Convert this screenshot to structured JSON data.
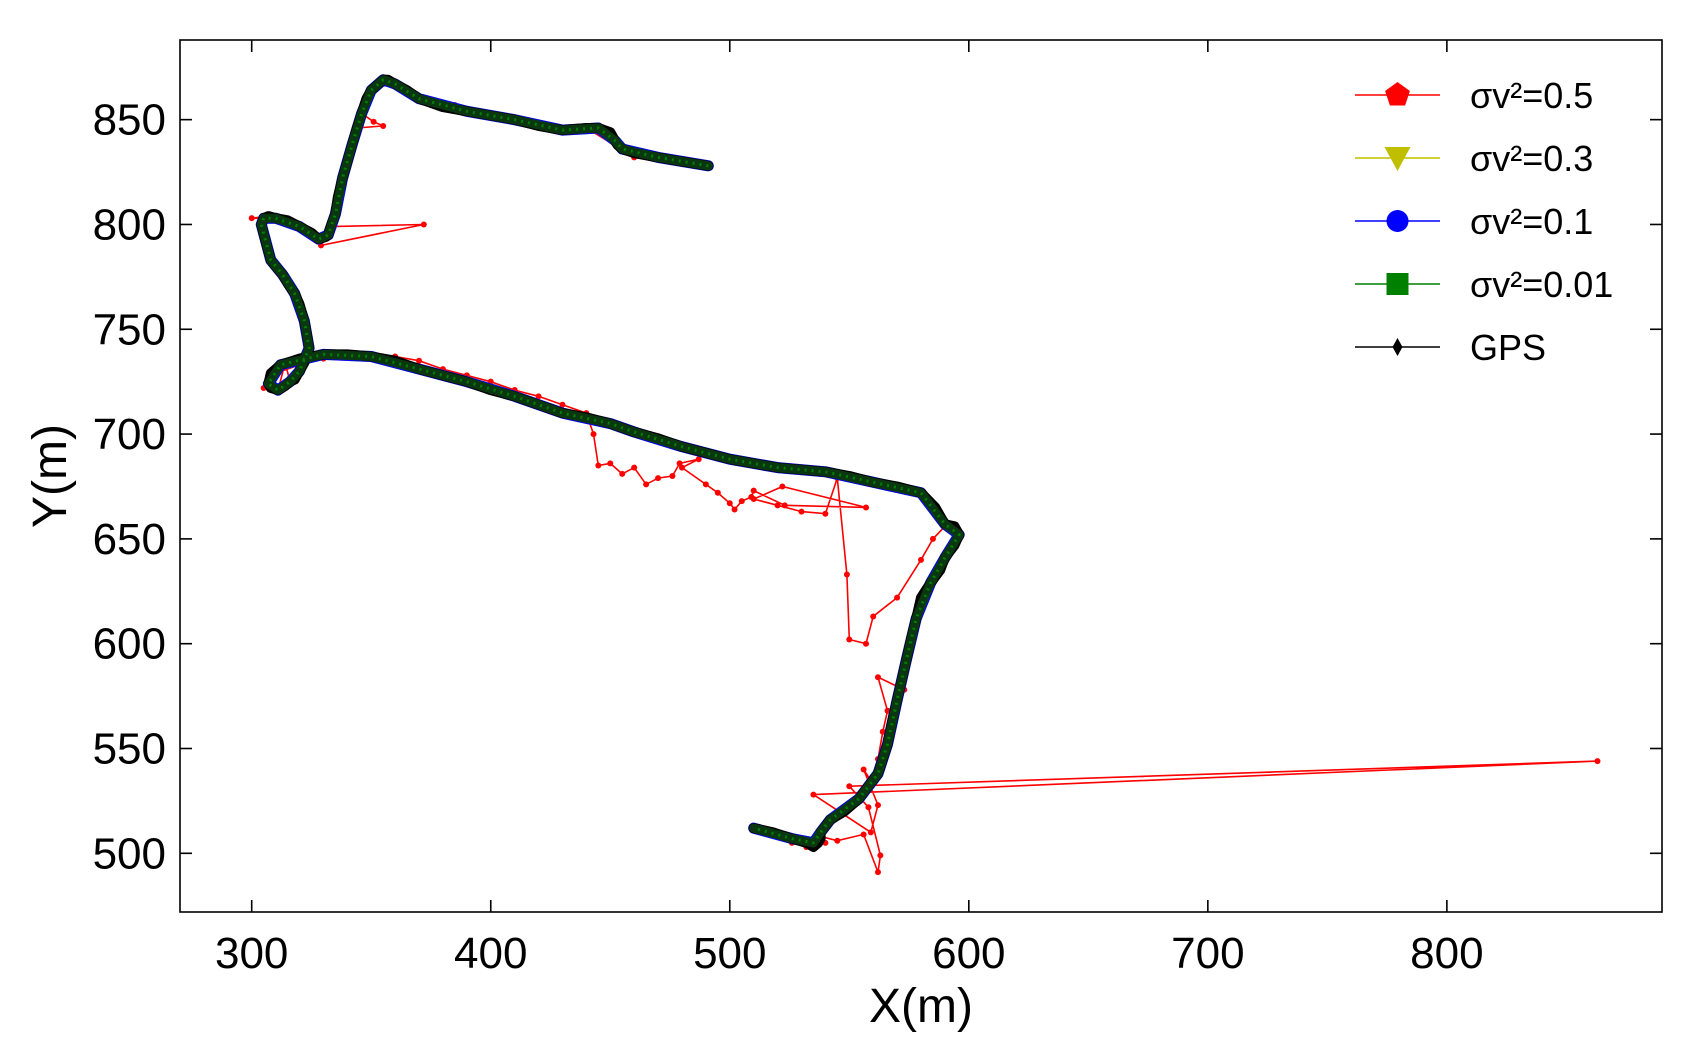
{
  "chart_data": {
    "type": "line",
    "xlabel": "X(m)",
    "ylabel": "Y(m)",
    "xlim": [
      270,
      890
    ],
    "ylim": [
      472,
      888
    ],
    "xticks": [
      300,
      400,
      500,
      600,
      700,
      800
    ],
    "yticks": [
      500,
      550,
      600,
      650,
      700,
      750,
      800,
      850
    ],
    "grid": false,
    "legend_position": "top-right",
    "legend": [
      {
        "label": "σv²=0.5",
        "color": "#ff0000",
        "marker": "pentagon"
      },
      {
        "label": "σv²=0.3",
        "color": "#bfbf00",
        "marker": "triangle-down"
      },
      {
        "label": "σv²=0.1",
        "color": "#0000ff",
        "marker": "circle"
      },
      {
        "label": "σv²=0.01",
        "color": "#008000",
        "marker": "square"
      },
      {
        "label": "GPS",
        "color": "#000000",
        "marker": "diamond"
      }
    ],
    "series": [
      {
        "name": "GPS",
        "color": "#000000",
        "x": [
          491,
          480,
          470,
          460,
          455,
          453,
          452,
          450,
          445,
          440,
          430,
          420,
          410,
          400,
          390,
          380,
          370,
          365,
          360,
          357,
          355,
          353,
          350,
          348,
          346,
          344,
          342,
          340,
          338,
          336,
          335,
          333,
          332,
          331,
          328,
          325,
          320,
          315,
          310,
          307,
          305,
          304,
          306,
          308,
          310,
          313,
          315,
          318,
          320,
          322,
          323,
          324,
          322,
          320,
          318,
          316,
          314,
          311,
          308,
          307,
          308,
          312,
          320,
          330,
          340,
          350,
          360,
          370,
          380,
          390,
          400,
          410,
          420,
          430,
          440,
          450,
          455,
          460,
          470,
          480,
          490,
          500,
          510,
          520,
          530,
          540,
          550,
          560,
          570,
          580,
          586,
          590,
          594,
          596,
          594,
          590,
          588,
          584,
          580,
          578,
          576,
          574,
          572,
          570,
          568,
          566,
          564,
          562,
          558,
          554,
          548,
          542,
          540,
          538,
          538,
          537,
          535,
          532,
          526,
          518,
          510
        ],
        "y": [
          828,
          830,
          832,
          834,
          836,
          838,
          840,
          844,
          846,
          846,
          845,
          847,
          850,
          852,
          854,
          856,
          860,
          864,
          867,
          869,
          869,
          867,
          864,
          860,
          853,
          846,
          838,
          830,
          822,
          813,
          805,
          799,
          795,
          794,
          793,
          796,
          799,
          802,
          803,
          804,
          803,
          800,
          791,
          783,
          780,
          776,
          772,
          767,
          762,
          754,
          748,
          741,
          734,
          730,
          726,
          725,
          723,
          721,
          722,
          724,
          729,
          733,
          736,
          738,
          738,
          737,
          735,
          731,
          728,
          725,
          721,
          718,
          714,
          710,
          708,
          705,
          703,
          701,
          698,
          694,
          691,
          688,
          686,
          684,
          683,
          682,
          680,
          677,
          675,
          672,
          665,
          657,
          656,
          652,
          647,
          641,
          635,
          629,
          622,
          612,
          603,
          593,
          583,
          573,
          563,
          552,
          545,
          538,
          532,
          526,
          520,
          516,
          513,
          510,
          507,
          505,
          503,
          505,
          507,
          510,
          512
        ]
      },
      {
        "name": "σv²=0.5",
        "color": "#ff0000",
        "x": [
          491,
          460,
          440,
          420,
          400,
          390,
          385,
          380,
          370,
          360,
          357,
          355,
          353,
          350,
          348,
          346,
          351,
          355,
          344,
          342,
          340,
          338,
          336,
          335,
          333,
          372,
          329,
          325,
          320,
          315,
          310,
          300,
          307,
          305,
          304,
          306,
          308,
          310,
          313,
          315,
          318,
          320,
          322,
          323,
          324,
          322,
          320,
          318,
          316,
          314,
          311,
          308,
          305,
          306,
          310,
          320,
          330,
          340,
          350,
          360,
          370,
          380,
          390,
          400,
          410,
          420,
          430,
          440,
          443,
          445,
          450,
          455,
          460,
          465,
          470,
          476,
          479,
          487,
          480,
          490,
          495,
          500,
          502,
          505,
          509,
          510,
          523,
          557,
          522,
          510,
          520,
          530,
          540,
          545,
          549,
          550,
          557,
          560,
          570,
          580,
          585,
          590,
          594,
          596,
          594,
          590,
          588,
          584,
          580,
          578,
          576,
          574,
          572,
          570,
          568,
          573,
          562,
          566,
          564,
          562,
          560,
          556,
          562,
          559,
          535,
          863,
          550,
          558,
          563,
          562,
          556,
          545,
          538,
          535,
          540,
          532,
          526,
          518,
          510
        ],
        "y": [
          828,
          832,
          846,
          847,
          852,
          854,
          857,
          856,
          860,
          867,
          869,
          869,
          867,
          864,
          860,
          853,
          849,
          847,
          846,
          838,
          830,
          822,
          813,
          805,
          799,
          800,
          790,
          796,
          799,
          802,
          803,
          803,
          804,
          803,
          800,
          791,
          783,
          780,
          776,
          772,
          767,
          762,
          754,
          748,
          741,
          734,
          730,
          726,
          725,
          734,
          721,
          722,
          722,
          724,
          729,
          733,
          736,
          738,
          738,
          737,
          735,
          731,
          728,
          725,
          721,
          718,
          714,
          710,
          700,
          685,
          686,
          681,
          684,
          676,
          679,
          680,
          686,
          688,
          684,
          676,
          672,
          667,
          664,
          668,
          670,
          673,
          666,
          665,
          675,
          669,
          666,
          663,
          662,
          679,
          633,
          602,
          600,
          613,
          622,
          640,
          650,
          656,
          656,
          652,
          647,
          641,
          635,
          629,
          622,
          612,
          603,
          593,
          583,
          573,
          563,
          578,
          584,
          568,
          558,
          545,
          533,
          540,
          523,
          510,
          528,
          544,
          532,
          522,
          499,
          491,
          509,
          506,
          508,
          507,
          505,
          503,
          505,
          510,
          512
        ]
      },
      {
        "name": "σv²=0.3",
        "color": "#bfbf00",
        "x": [
          491,
          470,
          455,
          452,
          445,
          430,
          410,
          390,
          370,
          360,
          355,
          350,
          346,
          342,
          338,
          335,
          332,
          328,
          320,
          310,
          305,
          304,
          308,
          313,
          318,
          322,
          324,
          320,
          316,
          311,
          307,
          312,
          330,
          350,
          370,
          390,
          410,
          430,
          450,
          460,
          480,
          500,
          520,
          540,
          560,
          580,
          590,
          596,
          590,
          584,
          578,
          574,
          570,
          566,
          562,
          554,
          542,
          538,
          535,
          526,
          510
        ],
        "y": [
          828,
          832,
          836,
          840,
          846,
          845,
          850,
          854,
          860,
          867,
          869,
          864,
          853,
          838,
          822,
          805,
          795,
          793,
          799,
          803,
          803,
          800,
          783,
          776,
          767,
          754,
          741,
          730,
          725,
          721,
          724,
          733,
          738,
          737,
          731,
          725,
          718,
          710,
          705,
          701,
          694,
          688,
          684,
          682,
          677,
          672,
          657,
          652,
          641,
          629,
          612,
          593,
          573,
          552,
          538,
          526,
          516,
          510,
          505,
          507,
          512
        ]
      },
      {
        "name": "σv²=0.1",
        "color": "#0000ff",
        "x": [
          491,
          470,
          455,
          452,
          445,
          430,
          410,
          390,
          370,
          360,
          355,
          350,
          346,
          342,
          338,
          335,
          332,
          328,
          320,
          310,
          305,
          304,
          308,
          313,
          318,
          322,
          324,
          320,
          316,
          311,
          307,
          312,
          330,
          350,
          370,
          390,
          410,
          430,
          450,
          460,
          480,
          500,
          520,
          540,
          560,
          580,
          590,
          596,
          590,
          584,
          578,
          574,
          570,
          566,
          562,
          554,
          542,
          538,
          535,
          526,
          510
        ],
        "y": [
          828,
          832,
          836,
          840,
          846,
          845,
          850,
          854,
          860,
          867,
          869,
          864,
          853,
          838,
          822,
          805,
          795,
          793,
          799,
          803,
          803,
          800,
          783,
          776,
          767,
          754,
          741,
          730,
          725,
          721,
          724,
          733,
          738,
          737,
          731,
          725,
          718,
          710,
          705,
          701,
          694,
          688,
          684,
          682,
          677,
          672,
          657,
          652,
          641,
          629,
          612,
          593,
          573,
          552,
          538,
          526,
          516,
          510,
          505,
          507,
          512
        ]
      },
      {
        "name": "σv²=0.01",
        "color": "#008000",
        "x": [
          491,
          470,
          455,
          452,
          445,
          430,
          410,
          390,
          370,
          360,
          355,
          350,
          346,
          342,
          338,
          335,
          332,
          328,
          320,
          310,
          305,
          304,
          308,
          313,
          318,
          322,
          324,
          320,
          316,
          311,
          307,
          312,
          330,
          350,
          370,
          390,
          410,
          430,
          450,
          460,
          480,
          500,
          520,
          540,
          560,
          580,
          590,
          596,
          590,
          584,
          578,
          574,
          570,
          566,
          562,
          554,
          542,
          538,
          535,
          526,
          510
        ],
        "y": [
          828,
          832,
          836,
          840,
          846,
          845,
          850,
          854,
          860,
          867,
          869,
          864,
          853,
          838,
          822,
          805,
          795,
          793,
          799,
          803,
          803,
          800,
          783,
          776,
          767,
          754,
          741,
          730,
          725,
          721,
          724,
          733,
          738,
          737,
          731,
          725,
          718,
          710,
          705,
          701,
          694,
          688,
          684,
          682,
          677,
          672,
          657,
          652,
          641,
          629,
          612,
          593,
          573,
          552,
          538,
          526,
          516,
          510,
          505,
          507,
          512
        ]
      }
    ]
  }
}
